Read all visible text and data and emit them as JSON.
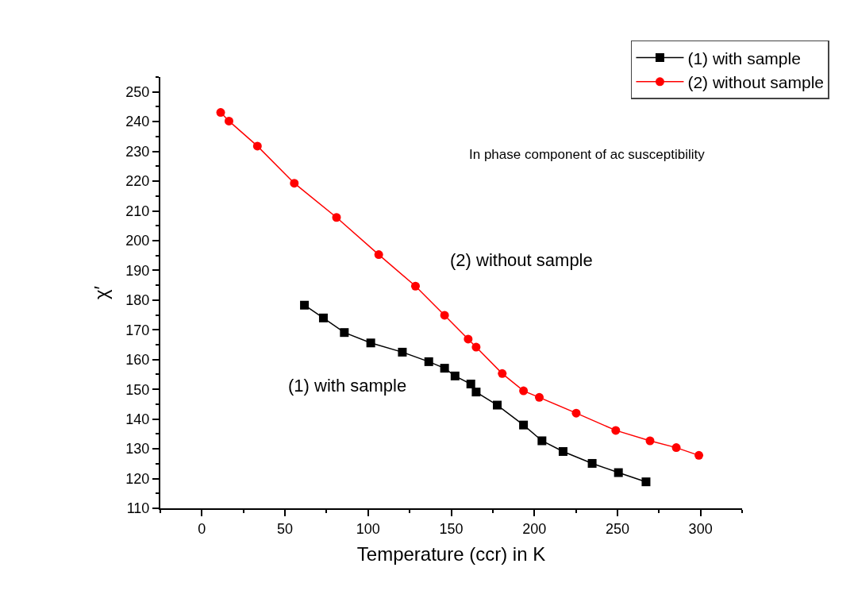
{
  "chart_data": {
    "type": "line",
    "xlabel": "Temperature (ccr) in K",
    "ylabel": "χ′",
    "xlim": [
      -25,
      325
    ],
    "xticks": [
      0,
      50,
      100,
      150,
      200,
      250,
      300
    ],
    "ylim": [
      110,
      255
    ],
    "yticks": [
      110,
      120,
      130,
      140,
      150,
      160,
      170,
      180,
      190,
      200,
      210,
      220,
      230,
      240,
      250
    ],
    "legend": "top right",
    "series": [
      {
        "name": "(1) with sample",
        "color": "#000000",
        "marker": "square",
        "x": [
          61.7,
          73.1,
          85.7,
          101.6,
          120.6,
          136.5,
          146,
          152.3,
          161.8,
          165,
          177.7,
          193.5,
          204.6,
          217.3,
          234.8,
          250.6,
          267.2
        ],
        "values": [
          178.3,
          174,
          169.1,
          165.6,
          162.5,
          159.3,
          157.1,
          154.5,
          151.8,
          149.1,
          144.7,
          138,
          132.7,
          129.1,
          125.1,
          122,
          118.9
        ]
      },
      {
        "name": "(2) without sample",
        "color": "#ff0000",
        "marker": "circle",
        "x": [
          11.3,
          16.3,
          33.4,
          55.6,
          81,
          106.4,
          128.5,
          146,
          160.2,
          165,
          180.7,
          193.5,
          203,
          225.2,
          249,
          269.6,
          285.4,
          299
        ],
        "values": [
          243.1,
          240.2,
          231.8,
          219.3,
          207.8,
          195.3,
          184.7,
          174.9,
          166.9,
          164.2,
          155.3,
          149.5,
          147.3,
          142,
          136.2,
          132.7,
          130.4,
          127.8
        ]
      }
    ],
    "annotations": [
      "In phase component of ac susceptibility",
      "(2) without sample",
      "(1) with sample"
    ]
  }
}
